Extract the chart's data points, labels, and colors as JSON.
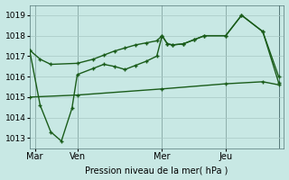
{
  "xlabel": "Pression niveau de la mer( hPa )",
  "bg_color": "#c8e8e4",
  "grid_color": "#a8c8c4",
  "line_color": "#1a5c1a",
  "ylim": [
    1012.5,
    1019.5
  ],
  "yticks": [
    1013,
    1014,
    1015,
    1016,
    1017,
    1018,
    1019
  ],
  "xlim": [
    0,
    48
  ],
  "day_positions": [
    1,
    9,
    25,
    37,
    47
  ],
  "day_labels": [
    "Mar",
    "Ven",
    "Mer",
    "Jeu"
  ],
  "vline_positions": [
    1,
    9,
    25,
    37,
    47
  ],
  "s1_x": [
    0,
    2,
    4,
    9,
    12,
    14,
    16,
    18,
    20,
    22,
    24,
    25,
    26,
    27,
    29,
    31,
    33,
    37,
    40,
    44,
    47
  ],
  "s1_y": [
    1017.3,
    1016.85,
    1016.6,
    1016.65,
    1016.85,
    1017.05,
    1017.25,
    1017.4,
    1017.55,
    1017.65,
    1017.75,
    1018.0,
    1017.6,
    1017.55,
    1017.6,
    1017.8,
    1018.0,
    1018.0,
    1019.0,
    1018.2,
    1015.7
  ],
  "s2_x": [
    0,
    2,
    4,
    6,
    8,
    9,
    12,
    14,
    16,
    18,
    20,
    22,
    24,
    25,
    26,
    27,
    29,
    31,
    33,
    37,
    40,
    44,
    47
  ],
  "s2_y": [
    1017.3,
    1014.6,
    1013.3,
    1012.85,
    1014.45,
    1016.1,
    1016.4,
    1016.6,
    1016.5,
    1016.35,
    1016.55,
    1016.75,
    1017.0,
    1018.0,
    1017.6,
    1017.55,
    1017.6,
    1017.8,
    1018.0,
    1018.0,
    1019.0,
    1018.2,
    1016.0
  ],
  "s3_x": [
    0,
    9,
    25,
    37,
    44,
    47
  ],
  "s3_y": [
    1015.0,
    1015.1,
    1015.4,
    1015.65,
    1015.75,
    1015.6
  ]
}
